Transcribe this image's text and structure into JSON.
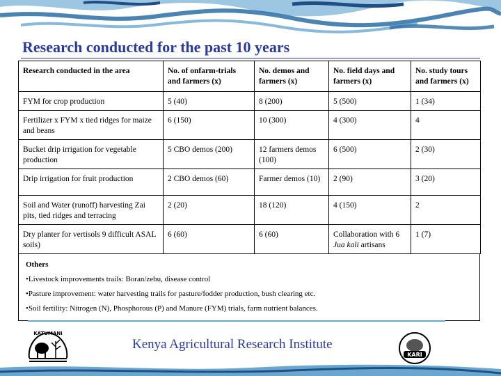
{
  "title": "Research conducted for the past 10 years",
  "table": {
    "headers": [
      "Research conducted in the area",
      "No. of onfarm-trials and farmers (x)",
      "No. demos and farmers (x)",
      "No. field days and farmers (x)",
      "No. study tours and farmers (x)"
    ],
    "rows": [
      [
        "FYM for crop production",
        "5 (40)",
        "8 (200)",
        "5 (500)",
        "1 (34)"
      ],
      [
        "Fertilizer x FYM x tied ridges for maize and beans",
        "6 (150)",
        "10 (300)",
        "4 (300)",
        "4"
      ],
      [
        "Bucket drip irrigation for vegetable production",
        "5 CBO demos (200)",
        "12 farmers demos (100)",
        "6 (500)",
        "2 (30)"
      ],
      [
        "Drip irrigation for fruit production",
        "2 CBO demos (60)",
        "Farmer demos (10)",
        "2 (90)",
        "3 (20)"
      ],
      [
        "Soil and Water (runoff) harvesting Zai pits, tied ridges and terracing",
        "2 (20)",
        "18 (120)",
        "4 (150)",
        "2"
      ],
      [
        "Dry planter for vertisols 9 difficult ASAL soils)",
        "6 (60)",
        "6 (60)",
        "Collaboration with 6 Jua kali artisans",
        "1 (7)"
      ]
    ]
  },
  "others": {
    "title": "Others",
    "items": [
      "•Livestock improvements trails: Boran/zebu, disease control",
      "•Pasture improvement: water harvesting trails for pasture/fodder production, bush clearing etc.",
      "•Soil fertility: Nitrogen (N), Phosphorous (P) and Manure (FYM) trials, farm nutrient balances."
    ]
  },
  "footer": {
    "institute": "Kenya Agricultural Research Institute",
    "logo_left_text": "KATUMANI",
    "logo_right_text": "KARI"
  },
  "colors": {
    "title": "#2a3a9c",
    "banner": "#6aa7cf",
    "banner_dark": "#1f4f86"
  }
}
